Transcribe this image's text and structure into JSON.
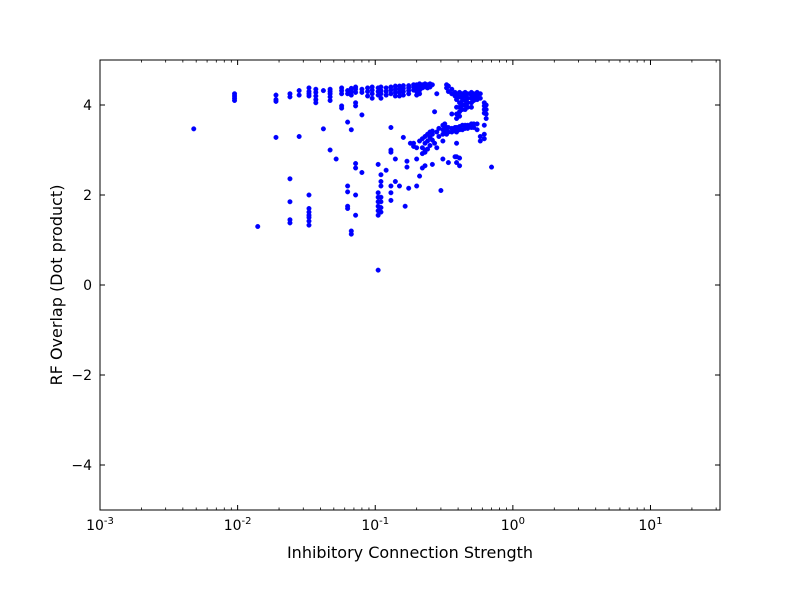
{
  "chart_data": {
    "type": "scatter",
    "xlabel": "Inhibitory Connection Strength",
    "ylabel": "RF Overlap (Dot product)",
    "xscale": "log",
    "xlim": [
      0.001,
      32
    ],
    "ylim": [
      -5,
      5
    ],
    "grid": false,
    "marker_color": "#0000ff",
    "x_ticks": [
      {
        "value": 0.001,
        "base": "10",
        "exp": "-3"
      },
      {
        "value": 0.01,
        "base": "10",
        "exp": "-2"
      },
      {
        "value": 0.1,
        "base": "10",
        "exp": "-1"
      },
      {
        "value": 1,
        "base": "10",
        "exp": "0"
      },
      {
        "value": 10,
        "base": "10",
        "exp": "1"
      }
    ],
    "y_ticks": [
      {
        "value": 4,
        "label": "4"
      },
      {
        "value": 2,
        "label": "2"
      },
      {
        "value": 0,
        "label": "0"
      },
      {
        "value": -2,
        "label": "−2"
      },
      {
        "value": -4,
        "label": "−4"
      }
    ],
    "series": [
      {
        "points": [
          [
            0.0048,
            3.47
          ],
          [
            0.0095,
            4.25
          ],
          [
            0.0095,
            4.2
          ],
          [
            0.0095,
            4.15
          ],
          [
            0.0095,
            4.1
          ],
          [
            0.014,
            1.3
          ],
          [
            0.019,
            4.22
          ],
          [
            0.019,
            4.12
          ],
          [
            0.019,
            4.08
          ],
          [
            0.019,
            3.28
          ],
          [
            0.024,
            4.25
          ],
          [
            0.024,
            4.18
          ],
          [
            0.024,
            2.36
          ],
          [
            0.024,
            1.85
          ],
          [
            0.024,
            1.45
          ],
          [
            0.024,
            1.38
          ],
          [
            0.028,
            4.32
          ],
          [
            0.028,
            4.22
          ],
          [
            0.028,
            3.3
          ],
          [
            0.033,
            4.38
          ],
          [
            0.033,
            4.3
          ],
          [
            0.033,
            4.25
          ],
          [
            0.033,
            4.2
          ],
          [
            0.033,
            2.0
          ],
          [
            0.033,
            1.7
          ],
          [
            0.033,
            1.62
          ],
          [
            0.033,
            1.55
          ],
          [
            0.033,
            1.5
          ],
          [
            0.033,
            1.42
          ],
          [
            0.033,
            1.33
          ],
          [
            0.037,
            4.35
          ],
          [
            0.037,
            4.28
          ],
          [
            0.037,
            4.2
          ],
          [
            0.037,
            4.12
          ],
          [
            0.037,
            4.05
          ],
          [
            0.042,
            3.47
          ],
          [
            0.042,
            4.32
          ],
          [
            0.047,
            4.35
          ],
          [
            0.047,
            4.3
          ],
          [
            0.047,
            4.25
          ],
          [
            0.047,
            4.18
          ],
          [
            0.047,
            4.1
          ],
          [
            0.047,
            3.0
          ],
          [
            0.052,
            2.8
          ],
          [
            0.057,
            4.38
          ],
          [
            0.057,
            4.32
          ],
          [
            0.057,
            4.25
          ],
          [
            0.057,
            3.98
          ],
          [
            0.057,
            3.93
          ],
          [
            0.063,
            4.32
          ],
          [
            0.063,
            4.25
          ],
          [
            0.063,
            3.62
          ],
          [
            0.063,
            2.2
          ],
          [
            0.063,
            2.07
          ],
          [
            0.063,
            1.75
          ],
          [
            0.063,
            1.7
          ],
          [
            0.067,
            4.37
          ],
          [
            0.067,
            4.3
          ],
          [
            0.067,
            4.22
          ],
          [
            0.067,
            3.45
          ],
          [
            0.067,
            1.2
          ],
          [
            0.067,
            1.13
          ],
          [
            0.072,
            4.4
          ],
          [
            0.072,
            4.35
          ],
          [
            0.072,
            4.28
          ],
          [
            0.072,
            4.05
          ],
          [
            0.072,
            3.98
          ],
          [
            0.072,
            2.7
          ],
          [
            0.072,
            2.6
          ],
          [
            0.072,
            2.0
          ],
          [
            0.072,
            1.55
          ],
          [
            0.08,
            4.35
          ],
          [
            0.08,
            4.28
          ],
          [
            0.08,
            3.78
          ],
          [
            0.08,
            2.5
          ],
          [
            0.088,
            4.38
          ],
          [
            0.088,
            4.3
          ],
          [
            0.088,
            4.2
          ],
          [
            0.095,
            4.4
          ],
          [
            0.095,
            4.33
          ],
          [
            0.095,
            4.25
          ],
          [
            0.095,
            4.15
          ],
          [
            0.105,
            4.38
          ],
          [
            0.105,
            4.3
          ],
          [
            0.105,
            4.22
          ],
          [
            0.105,
            2.68
          ],
          [
            0.105,
            2.05
          ],
          [
            0.105,
            1.95
          ],
          [
            0.105,
            1.85
          ],
          [
            0.105,
            1.75
          ],
          [
            0.105,
            1.65
          ],
          [
            0.105,
            1.55
          ],
          [
            0.105,
            0.33
          ],
          [
            0.11,
            4.4
          ],
          [
            0.11,
            4.32
          ],
          [
            0.11,
            4.25
          ],
          [
            0.11,
            4.15
          ],
          [
            0.11,
            2.45
          ],
          [
            0.11,
            2.3
          ],
          [
            0.11,
            2.2
          ],
          [
            0.11,
            1.95
          ],
          [
            0.11,
            1.85
          ],
          [
            0.11,
            1.72
          ],
          [
            0.11,
            1.62
          ],
          [
            0.12,
            4.38
          ],
          [
            0.12,
            4.3
          ],
          [
            0.12,
            4.22
          ],
          [
            0.12,
            2.55
          ],
          [
            0.13,
            4.4
          ],
          [
            0.13,
            4.33
          ],
          [
            0.13,
            4.25
          ],
          [
            0.13,
            3.5
          ],
          [
            0.13,
            3.0
          ],
          [
            0.13,
            2.95
          ],
          [
            0.13,
            2.2
          ],
          [
            0.13,
            2.05
          ],
          [
            0.13,
            1.88
          ],
          [
            0.14,
            4.42
          ],
          [
            0.14,
            4.35
          ],
          [
            0.14,
            4.28
          ],
          [
            0.14,
            4.2
          ],
          [
            0.14,
            2.8
          ],
          [
            0.14,
            2.3
          ],
          [
            0.15,
            4.42
          ],
          [
            0.15,
            4.35
          ],
          [
            0.15,
            4.28
          ],
          [
            0.15,
            4.2
          ],
          [
            0.15,
            2.2
          ],
          [
            0.16,
            4.43
          ],
          [
            0.16,
            4.37
          ],
          [
            0.16,
            4.3
          ],
          [
            0.16,
            4.22
          ],
          [
            0.16,
            3.28
          ],
          [
            0.165,
            1.75
          ],
          [
            0.17,
            2.75
          ],
          [
            0.17,
            2.62
          ],
          [
            0.175,
            4.43
          ],
          [
            0.175,
            4.38
          ],
          [
            0.175,
            4.32
          ],
          [
            0.175,
            4.25
          ],
          [
            0.175,
            2.15
          ],
          [
            0.18,
            3.15
          ],
          [
            0.19,
            4.45
          ],
          [
            0.19,
            4.4
          ],
          [
            0.19,
            4.33
          ],
          [
            0.19,
            3.15
          ],
          [
            0.19,
            3.08
          ],
          [
            0.2,
            4.45
          ],
          [
            0.2,
            4.38
          ],
          [
            0.2,
            4.3
          ],
          [
            0.2,
            4.22
          ],
          [
            0.2,
            3.05
          ],
          [
            0.2,
            2.8
          ],
          [
            0.2,
            2.2
          ],
          [
            0.21,
            4.47
          ],
          [
            0.21,
            4.4
          ],
          [
            0.21,
            4.33
          ],
          [
            0.21,
            4.25
          ],
          [
            0.21,
            3.2
          ],
          [
            0.21,
            2.42
          ],
          [
            0.22,
            4.45
          ],
          [
            0.22,
            4.38
          ],
          [
            0.22,
            3.25
          ],
          [
            0.22,
            3.05
          ],
          [
            0.22,
            2.92
          ],
          [
            0.22,
            2.6
          ],
          [
            0.23,
            4.47
          ],
          [
            0.23,
            4.4
          ],
          [
            0.23,
            3.3
          ],
          [
            0.23,
            3.15
          ],
          [
            0.23,
            3.0
          ],
          [
            0.23,
            2.95
          ],
          [
            0.23,
            2.65
          ],
          [
            0.24,
            4.45
          ],
          [
            0.24,
            4.38
          ],
          [
            0.24,
            3.35
          ],
          [
            0.24,
            3.2
          ],
          [
            0.24,
            3.02
          ],
          [
            0.25,
            4.47
          ],
          [
            0.25,
            4.4
          ],
          [
            0.25,
            3.4
          ],
          [
            0.25,
            3.28
          ],
          [
            0.25,
            3.1
          ],
          [
            0.26,
            4.45
          ],
          [
            0.26,
            3.42
          ],
          [
            0.26,
            3.35
          ],
          [
            0.26,
            3.22
          ],
          [
            0.26,
            2.68
          ],
          [
            0.27,
            3.85
          ],
          [
            0.27,
            3.15
          ],
          [
            0.28,
            4.25
          ],
          [
            0.28,
            3.4
          ],
          [
            0.28,
            3.05
          ],
          [
            0.29,
            3.48
          ],
          [
            0.29,
            3.3
          ],
          [
            0.3,
            2.1
          ],
          [
            0.31,
            3.55
          ],
          [
            0.31,
            3.45
          ],
          [
            0.31,
            3.35
          ],
          [
            0.31,
            3.2
          ],
          [
            0.31,
            2.8
          ],
          [
            0.32,
            3.58
          ],
          [
            0.32,
            3.48
          ],
          [
            0.32,
            3.38
          ],
          [
            0.33,
            4.45
          ],
          [
            0.33,
            4.38
          ],
          [
            0.33,
            3.5
          ],
          [
            0.33,
            3.42
          ],
          [
            0.33,
            3.35
          ],
          [
            0.34,
            4.42
          ],
          [
            0.34,
            4.3
          ],
          [
            0.34,
            3.5
          ],
          [
            0.34,
            3.4
          ],
          [
            0.34,
            2.72
          ],
          [
            0.36,
            4.35
          ],
          [
            0.36,
            4.25
          ],
          [
            0.36,
            3.8
          ],
          [
            0.36,
            3.48
          ],
          [
            0.36,
            3.4
          ],
          [
            0.38,
            4.28
          ],
          [
            0.38,
            4.2
          ],
          [
            0.38,
            3.5
          ],
          [
            0.38,
            3.42
          ],
          [
            0.38,
            2.85
          ],
          [
            0.39,
            4.22
          ],
          [
            0.39,
            4.12
          ],
          [
            0.39,
            3.95
          ],
          [
            0.39,
            3.8
          ],
          [
            0.39,
            3.7
          ],
          [
            0.39,
            3.5
          ],
          [
            0.39,
            3.4
          ],
          [
            0.39,
            3.15
          ],
          [
            0.39,
            2.85
          ],
          [
            0.39,
            2.72
          ],
          [
            0.41,
            4.28
          ],
          [
            0.41,
            4.18
          ],
          [
            0.41,
            4.05
          ],
          [
            0.41,
            3.95
          ],
          [
            0.41,
            3.85
          ],
          [
            0.41,
            3.75
          ],
          [
            0.41,
            3.52
          ],
          [
            0.41,
            3.45
          ],
          [
            0.41,
            2.82
          ],
          [
            0.41,
            2.65
          ],
          [
            0.43,
            4.25
          ],
          [
            0.43,
            4.18
          ],
          [
            0.43,
            4.1
          ],
          [
            0.43,
            4.0
          ],
          [
            0.43,
            3.9
          ],
          [
            0.43,
            3.55
          ],
          [
            0.43,
            3.45
          ],
          [
            0.45,
            4.28
          ],
          [
            0.45,
            4.2
          ],
          [
            0.45,
            4.1
          ],
          [
            0.45,
            4.0
          ],
          [
            0.45,
            3.9
          ],
          [
            0.45,
            3.55
          ],
          [
            0.45,
            3.48
          ],
          [
            0.47,
            4.25
          ],
          [
            0.47,
            4.15
          ],
          [
            0.47,
            4.05
          ],
          [
            0.47,
            3.95
          ],
          [
            0.47,
            3.55
          ],
          [
            0.47,
            3.48
          ],
          [
            0.5,
            4.28
          ],
          [
            0.5,
            4.22
          ],
          [
            0.5,
            4.15
          ],
          [
            0.5,
            4.05
          ],
          [
            0.5,
            3.95
          ],
          [
            0.5,
            3.58
          ],
          [
            0.5,
            3.5
          ],
          [
            0.52,
            4.25
          ],
          [
            0.52,
            4.18
          ],
          [
            0.52,
            4.1
          ],
          [
            0.52,
            3.58
          ],
          [
            0.52,
            3.5
          ],
          [
            0.55,
            4.28
          ],
          [
            0.55,
            4.2
          ],
          [
            0.55,
            4.12
          ],
          [
            0.55,
            3.58
          ],
          [
            0.55,
            3.45
          ],
          [
            0.58,
            4.25
          ],
          [
            0.58,
            4.15
          ],
          [
            0.58,
            3.3
          ],
          [
            0.58,
            3.2
          ],
          [
            0.62,
            4.05
          ],
          [
            0.62,
            3.98
          ],
          [
            0.62,
            3.9
          ],
          [
            0.62,
            3.82
          ],
          [
            0.62,
            3.55
          ],
          [
            0.62,
            3.35
          ],
          [
            0.62,
            3.25
          ],
          [
            0.64,
            4.0
          ],
          [
            0.64,
            3.9
          ],
          [
            0.64,
            3.8
          ],
          [
            0.64,
            3.7
          ],
          [
            0.7,
            2.62
          ]
        ]
      }
    ]
  }
}
